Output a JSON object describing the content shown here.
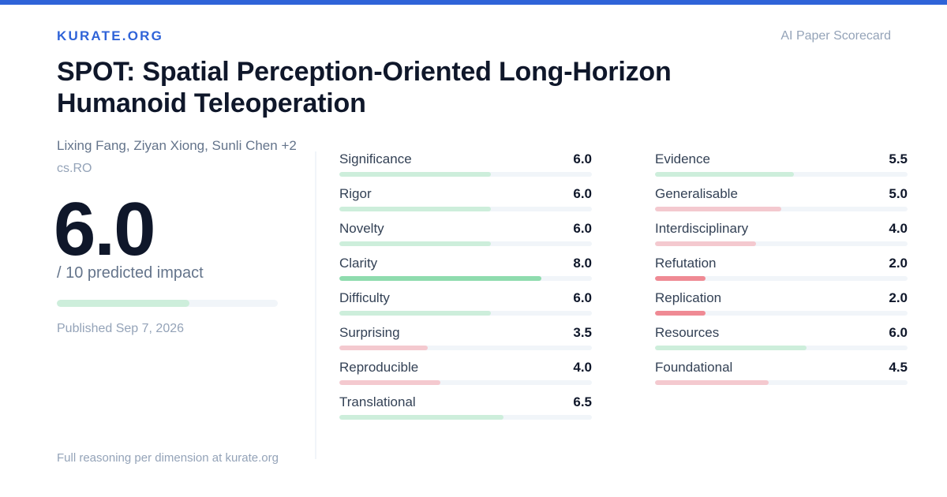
{
  "brand": "KURATE.ORG",
  "tagline": "AI Paper Scorecard",
  "paper": {
    "title": "SPOT: Spatial Perception-Oriented Long-Horizon Humanoid Teleoperation",
    "authors": "Lixing Fang, Ziyan Xiong, Sunli Chen +2",
    "category": "cs.RO",
    "published": "Published Sep 7, 2026"
  },
  "score": {
    "value": "6.0",
    "fraction": 0.6,
    "caption": "/ 10 predicted impact"
  },
  "footer": "Full reasoning per dimension at kurate.org",
  "colors": {
    "accent": "#2f63d8",
    "strong_green": "#8fdcae",
    "light_green": "#cdeedb",
    "light_red": "#f4c9cf",
    "strong_red": "#ef8a94"
  },
  "metrics_left": [
    {
      "label": "Significance",
      "value": "6.0",
      "fraction": 0.6,
      "color": "#cdeedb"
    },
    {
      "label": "Rigor",
      "value": "6.0",
      "fraction": 0.6,
      "color": "#cdeedb"
    },
    {
      "label": "Novelty",
      "value": "6.0",
      "fraction": 0.6,
      "color": "#cdeedb"
    },
    {
      "label": "Clarity",
      "value": "8.0",
      "fraction": 0.8,
      "color": "#8fdcae"
    },
    {
      "label": "Difficulty",
      "value": "6.0",
      "fraction": 0.6,
      "color": "#cdeedb"
    },
    {
      "label": "Surprising",
      "value": "3.5",
      "fraction": 0.35,
      "color": "#f4c9cf"
    },
    {
      "label": "Reproducible",
      "value": "4.0",
      "fraction": 0.4,
      "color": "#f4c9cf"
    },
    {
      "label": "Translational",
      "value": "6.5",
      "fraction": 0.65,
      "color": "#cdeedb"
    }
  ],
  "metrics_right": [
    {
      "label": "Evidence",
      "value": "5.5",
      "fraction": 0.55,
      "color": "#cdeedb"
    },
    {
      "label": "Generalisable",
      "value": "5.0",
      "fraction": 0.5,
      "color": "#f4c9cf"
    },
    {
      "label": "Interdisciplinary",
      "value": "4.0",
      "fraction": 0.4,
      "color": "#f4c9cf"
    },
    {
      "label": "Refutation",
      "value": "2.0",
      "fraction": 0.2,
      "color": "#ef8a94"
    },
    {
      "label": "Replication",
      "value": "2.0",
      "fraction": 0.2,
      "color": "#ef8a94"
    },
    {
      "label": "Resources",
      "value": "6.0",
      "fraction": 0.6,
      "color": "#cdeedb"
    },
    {
      "label": "Foundational",
      "value": "4.5",
      "fraction": 0.45,
      "color": "#f4c9cf"
    }
  ]
}
